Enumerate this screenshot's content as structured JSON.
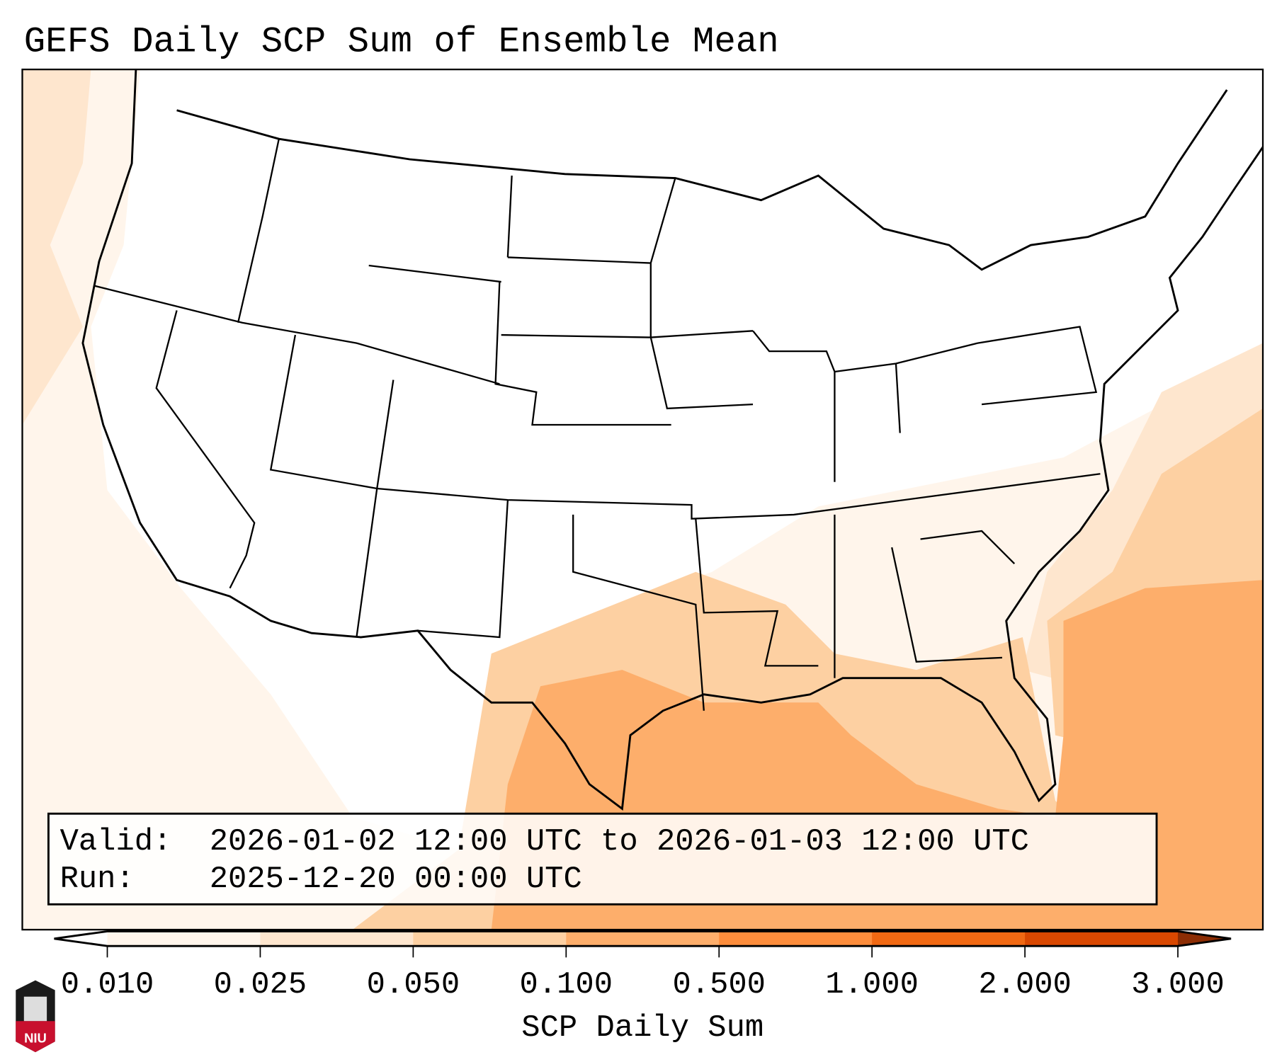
{
  "title": "GEFS Daily SCP Sum of Ensemble Mean",
  "info_box": {
    "valid_label": "Valid:",
    "valid_value": "2026-01-02 12:00 UTC to 2026-01-03 12:00 UTC",
    "run_label": "Run:",
    "run_value": "2025-12-20 00:00 UTC"
  },
  "colorbar": {
    "label": "SCP Daily Sum",
    "ticks": [
      "0.010",
      "0.025",
      "0.050",
      "0.100",
      "0.500",
      "1.000",
      "2.000",
      "3.000"
    ],
    "colors": [
      "#fff5eb",
      "#fee6ce",
      "#fdd0a2",
      "#fdae6b",
      "#fd8d3c",
      "#f16913",
      "#d94801",
      "#8c2d04"
    ],
    "under_color": "#ffffff"
  },
  "logo": {
    "text": "NIU"
  }
}
